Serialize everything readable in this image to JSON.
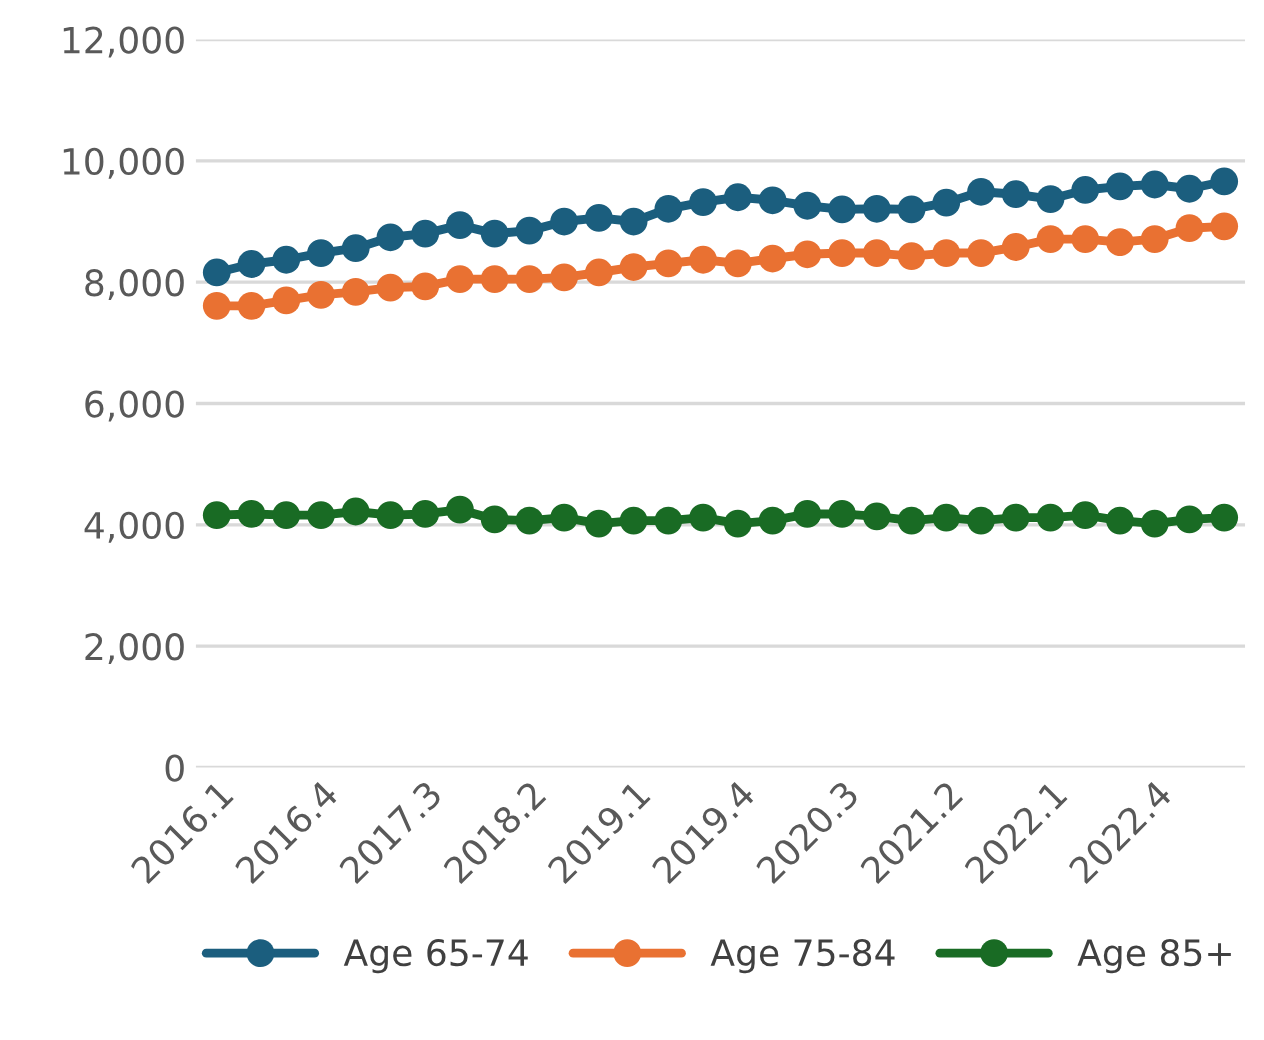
{
  "chart_data": {
    "type": "line",
    "categories": [
      "2016.1",
      null,
      null,
      "2016.4",
      null,
      null,
      "2017.3",
      null,
      null,
      "2018.2",
      null,
      null,
      "2019.1",
      null,
      null,
      "2019.4",
      null,
      null,
      "2020.3",
      null,
      null,
      "2021.2",
      null,
      null,
      "2022.1",
      null,
      null,
      "2022.4",
      null,
      null
    ],
    "series": [
      {
        "name": "Age 65-74",
        "color": "#1b5e7e",
        "values": [
          8160,
          8300,
          8370,
          8480,
          8560,
          8740,
          8800,
          8940,
          8800,
          8850,
          9000,
          9060,
          9000,
          9210,
          9320,
          9400,
          9350,
          9260,
          9200,
          9210,
          9200,
          9310,
          9490,
          9450,
          9370,
          9520,
          9580,
          9610,
          9540,
          9660
        ]
      },
      {
        "name": "Age 75-84",
        "color": "#e97132",
        "values": [
          7610,
          7610,
          7700,
          7790,
          7840,
          7910,
          7930,
          8050,
          8050,
          8050,
          8080,
          8160,
          8250,
          8310,
          8370,
          8310,
          8390,
          8460,
          8480,
          8480,
          8430,
          8480,
          8480,
          8580,
          8710,
          8710,
          8660,
          8710,
          8890,
          8920
        ]
      },
      {
        "name": "Age 85+",
        "color": "#196b24",
        "values": [
          4160,
          4180,
          4160,
          4160,
          4220,
          4160,
          4180,
          4250,
          4090,
          4070,
          4120,
          4020,
          4070,
          4070,
          4120,
          4020,
          4070,
          4180,
          4180,
          4140,
          4070,
          4120,
          4070,
          4120,
          4120,
          4160,
          4070,
          4020,
          4090,
          4120
        ]
      }
    ],
    "ylim": [
      0,
      12000
    ],
    "yticks": [
      {
        "value": 0,
        "label": "0"
      },
      {
        "value": 2000,
        "label": "2,000"
      },
      {
        "value": 4000,
        "label": "4,000"
      },
      {
        "value": 6000,
        "label": "6,000"
      },
      {
        "value": 8000,
        "label": "8,000"
      },
      {
        "value": 10000,
        "label": "10,000"
      },
      {
        "value": 12000,
        "label": "12,000"
      }
    ],
    "grid": "y",
    "legend": "bottom",
    "marker": "circle",
    "line_style": "solid"
  }
}
